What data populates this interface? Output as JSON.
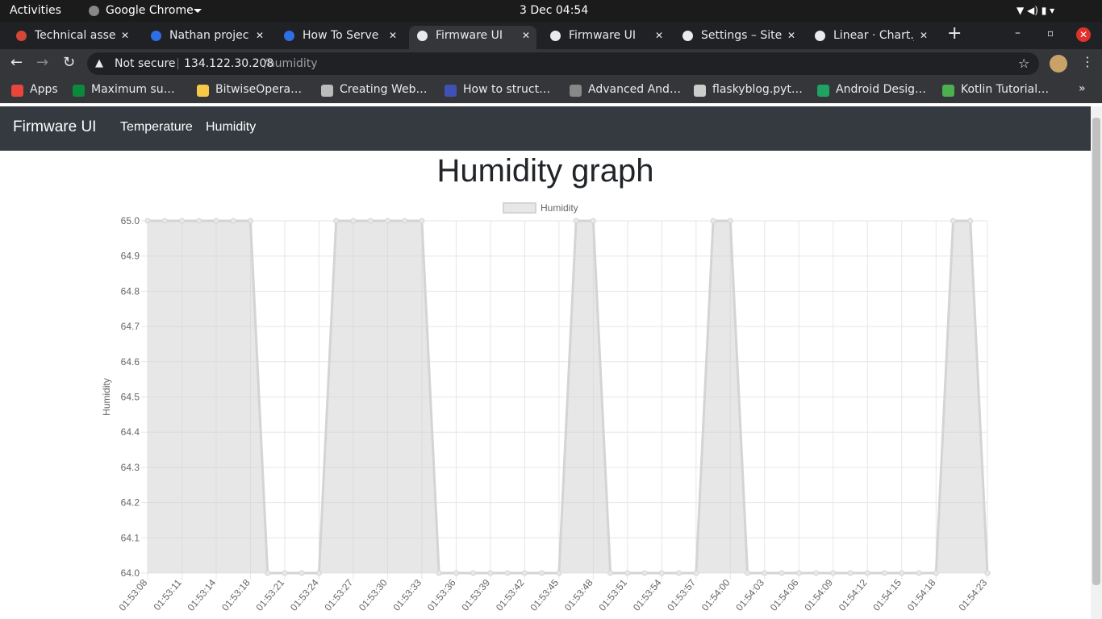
{
  "os_bar": {
    "activities": "Activities",
    "app": "Google Chrome",
    "clock": "3 Dec  04:54"
  },
  "tabs": [
    "Technical asse",
    "Nathan projec",
    "How To Serve F",
    "Firmware UI",
    "Firmware UI",
    "Settings – Site",
    "Linear · Chart.j"
  ],
  "address": {
    "security": "Not secure",
    "host": "134.122.30.208",
    "path": "/humidity"
  },
  "bookmarks": [
    "Apps",
    "Maximum su…",
    "BitwiseOpera…",
    "Creating Web…",
    "How to struct…",
    "Advanced And…",
    "flaskyblog.pyt…",
    "Android Desig…",
    "Kotlin Tutorial…"
  ],
  "navbar": {
    "brand": "Firmware UI",
    "links": [
      "Temperature",
      "Humidity"
    ]
  },
  "page": {
    "heading": "Humidity graph"
  },
  "chart_data": {
    "type": "line",
    "y_label": "Humidity",
    "categories": [
      "01:53:08",
      null,
      "01:53:11",
      null,
      "01:53:14",
      null,
      "01:53:18",
      null,
      "01:53:21",
      null,
      "01:53:24",
      null,
      "01:53:27",
      null,
      "01:53:30",
      null,
      "01:53:33",
      null,
      "01:53:36",
      null,
      "01:53:39",
      null,
      "01:53:42",
      null,
      "01:53:45",
      null,
      "01:53:48",
      null,
      "01:53:51",
      null,
      "01:53:54",
      null,
      "01:53:57",
      null,
      "01:54:00",
      null,
      "01:54:03",
      null,
      "01:54:06",
      null,
      "01:54:09",
      null,
      "01:54:12",
      null,
      "01:54:15",
      null,
      "01:54:18",
      null,
      null,
      "01:54:23"
    ],
    "series": [
      {
        "name": "Humidity",
        "color": "#d4d4d4",
        "values": [
          65,
          65,
          65,
          65,
          65,
          65,
          65,
          64,
          64,
          64,
          64,
          65,
          65,
          65,
          65,
          65,
          65,
          64,
          64,
          64,
          64,
          64,
          64,
          64,
          64,
          65,
          65,
          64,
          64,
          64,
          64,
          64,
          64,
          65,
          65,
          64,
          64,
          64,
          64,
          64,
          64,
          64,
          64,
          64,
          64,
          64,
          64,
          65,
          65,
          64
        ]
      }
    ],
    "ylim": [
      64,
      65
    ],
    "yticks": [
      {
        "value": 64,
        "label": "64.0"
      },
      64.1,
      64.2,
      64.3,
      64.4,
      64.5,
      64.6,
      64.7,
      64.8,
      64.9,
      {
        "value": 65,
        "label": "65.0"
      }
    ],
    "grid": true,
    "legend": "top"
  }
}
